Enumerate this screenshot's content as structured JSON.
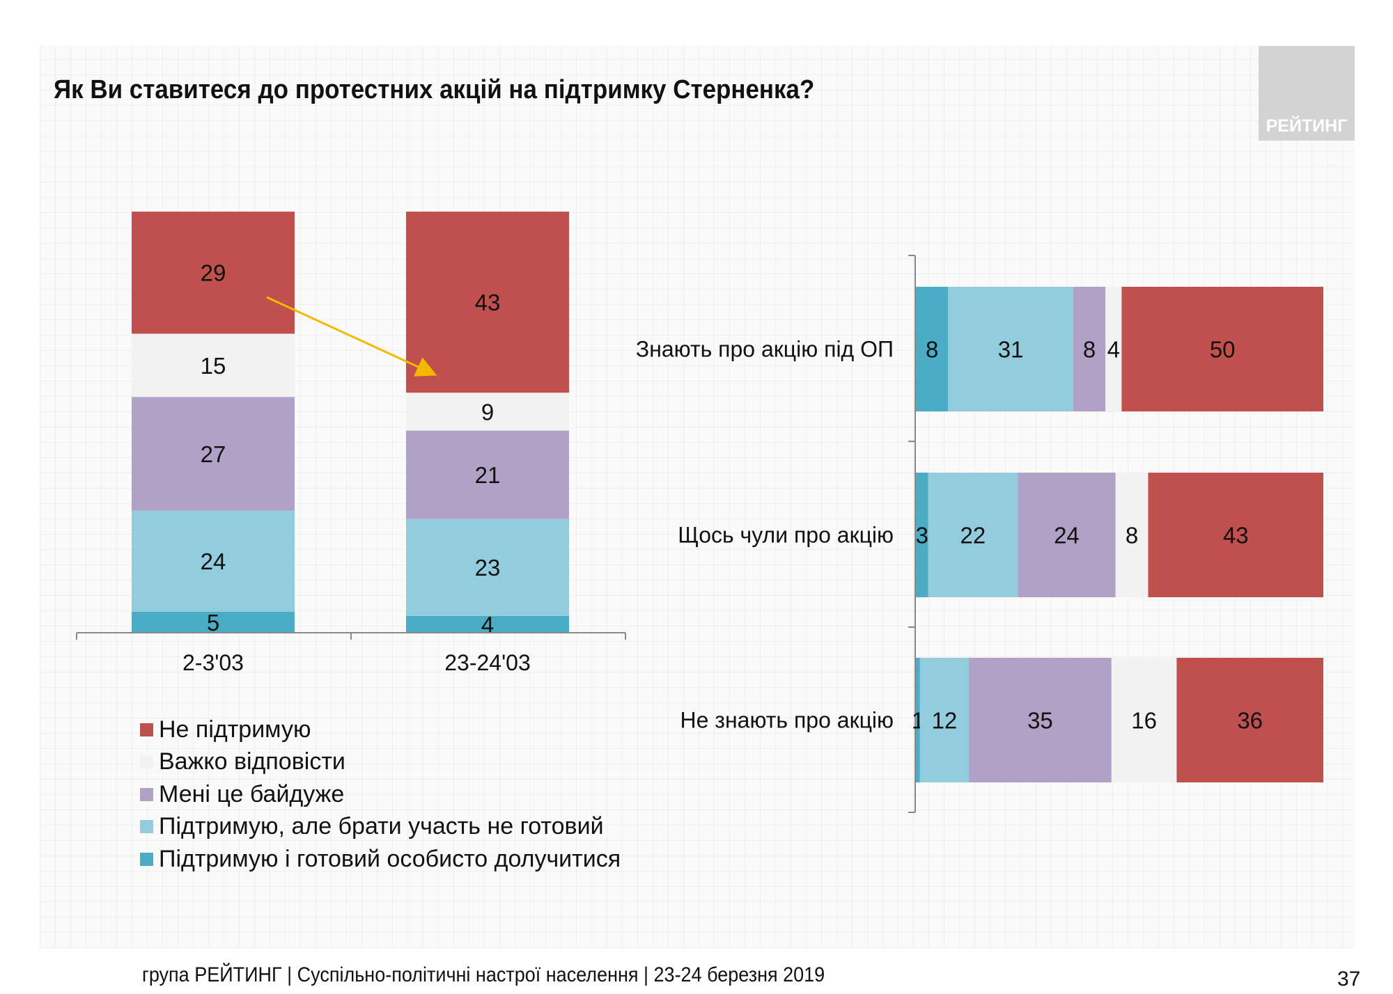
{
  "title": "Як Ви ставитеся до протестних акцій на підтримку Стерненка?",
  "logo_text": "РЕЙТИНГ",
  "footer": "група РЕЙТИНГ | Суспільно-політичні настрої населення  | 23-24 березня 2019",
  "page_number": "37",
  "legend": [
    {
      "label": "Не підтримую",
      "color": "#c0504d"
    },
    {
      "label": "Важко відповісти",
      "color": "#f2f2f2"
    },
    {
      "label": "Мені це байдуже",
      "color": "#b2a1c7"
    },
    {
      "label": "Підтримую, але брати участь не готовий",
      "color": "#93cddd"
    },
    {
      "label": "Підтримую і готовий особисто долучитися",
      "color": "#4bacc6"
    }
  ],
  "chart_data": [
    {
      "type": "bar",
      "orientation": "vertical",
      "stacked": true,
      "categories": [
        "2-3'03",
        "23-24'03"
      ],
      "series": [
        {
          "name": "Підтримую і готовий особисто долучитися",
          "values": [
            5,
            4
          ]
        },
        {
          "name": "Підтримую, але брати участь не готовий",
          "values": [
            24,
            23
          ]
        },
        {
          "name": "Мені це байдуже",
          "values": [
            27,
            21
          ]
        },
        {
          "name": "Важко відповісти",
          "values": [
            15,
            9
          ]
        },
        {
          "name": "Не підтримую",
          "values": [
            29,
            43
          ]
        }
      ],
      "ylim": [
        0,
        100
      ],
      "annotation": "arrow from 29 to 43"
    },
    {
      "type": "bar",
      "orientation": "horizontal",
      "stacked": true,
      "categories": [
        "Знають про акцію під ОП",
        "Щось чули про акцію",
        "Не знають про акцію"
      ],
      "series": [
        {
          "name": "Підтримую і готовий особисто долучитися",
          "values": [
            8,
            3,
            1
          ]
        },
        {
          "name": "Підтримую, але брати участь не готовий",
          "values": [
            31,
            22,
            12
          ]
        },
        {
          "name": "Мені це байдуже",
          "values": [
            8,
            24,
            35
          ]
        },
        {
          "name": "Важко відповісти",
          "values": [
            4,
            8,
            16
          ]
        },
        {
          "name": "Не підтримую",
          "values": [
            50,
            43,
            36
          ]
        }
      ]
    }
  ]
}
